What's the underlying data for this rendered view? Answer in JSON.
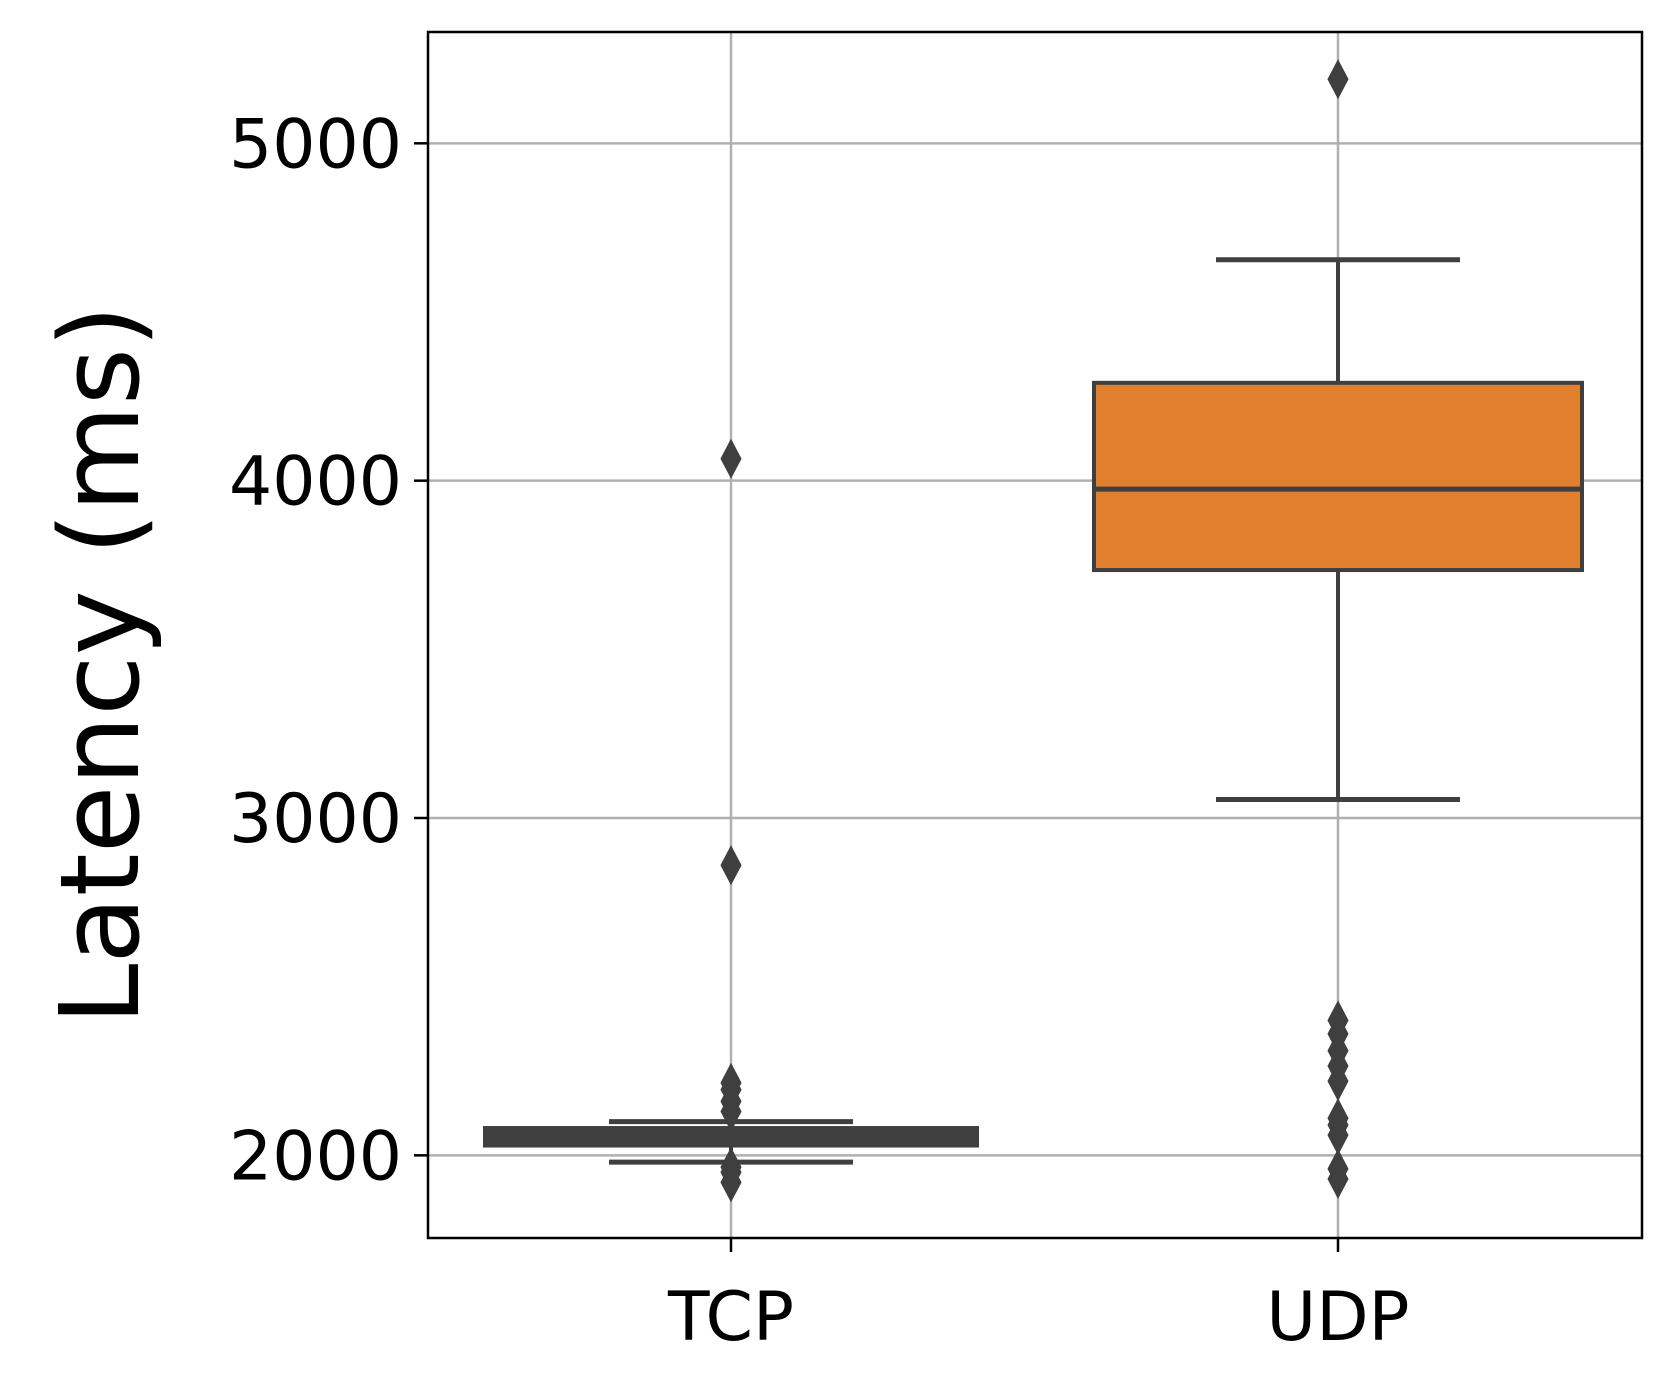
{
  "chart_data": {
    "type": "box",
    "title": "",
    "xlabel": "",
    "ylabel": "Latency (ms)",
    "categories": [
      "TCP",
      "UDP"
    ],
    "yticks": [
      2000,
      3000,
      4000,
      5000
    ],
    "ylim": [
      1755,
      5330
    ],
    "grid": true,
    "legend": "none",
    "colors": {
      "TCP": "#1f77b4",
      "UDP": "#e07f2e",
      "line": "#3f3f3f",
      "grid": "#b0b0b0"
    },
    "boxes": [
      {
        "category": "TCP",
        "whisker_low": 1980,
        "q1": 2035,
        "median": 2058,
        "q3": 2075,
        "whisker_high": 2100,
        "outliers": [
          1920,
          1950,
          1965,
          2130,
          2160,
          2195,
          2215,
          2860,
          4065
        ]
      },
      {
        "category": "UDP",
        "whisker_low": 3055,
        "q1": 3735,
        "median": 3975,
        "q3": 4290,
        "whisker_high": 4655,
        "outliers": [
          1930,
          1960,
          2060,
          2090,
          2110,
          2220,
          2265,
          2310,
          2360,
          2400,
          5190
        ]
      }
    ]
  }
}
